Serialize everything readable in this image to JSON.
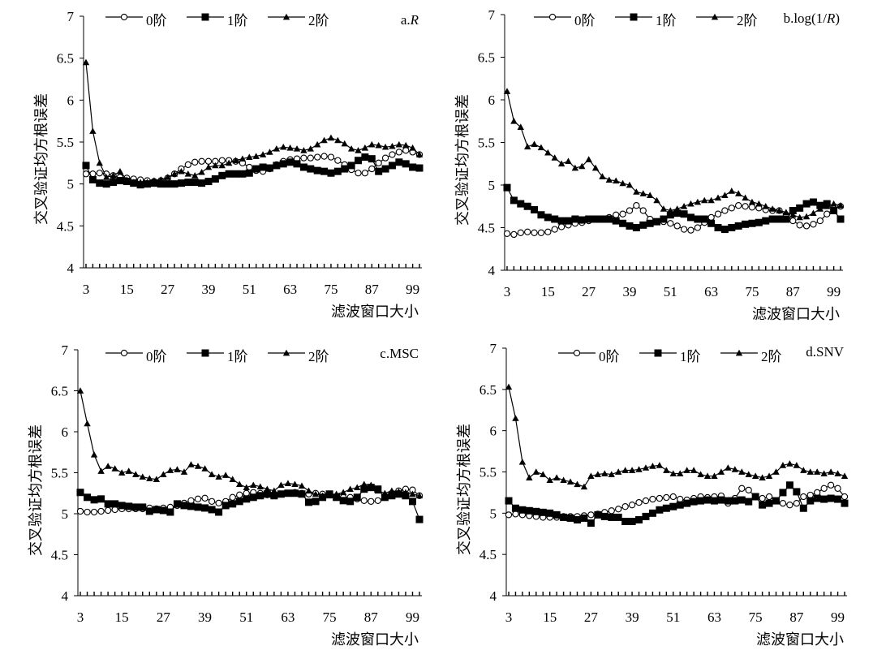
{
  "chart_data": [
    {
      "type": "line",
      "title": "a.R",
      "title_parts": {
        "prefix": "a.",
        "italic": "R",
        "suffix": ""
      },
      "xlabel": "滤波窗口大小",
      "ylabel": "交叉验证均方根误差",
      "ylim": [
        4,
        7
      ],
      "y_ticks": [
        "4",
        "4.5",
        "5",
        "5.5",
        "6",
        "6.5",
        "7"
      ],
      "x_ticks": [
        "3",
        "15",
        "27",
        "39",
        "51",
        "63",
        "75",
        "87",
        "99"
      ],
      "xlim": [
        3,
        101
      ],
      "grid": false,
      "legend_position": "top",
      "x": [
        3,
        5,
        7,
        9,
        11,
        13,
        15,
        17,
        19,
        21,
        23,
        25,
        27,
        29,
        31,
        33,
        35,
        37,
        39,
        41,
        43,
        45,
        47,
        49,
        51,
        53,
        55,
        57,
        59,
        61,
        63,
        65,
        67,
        69,
        71,
        73,
        75,
        77,
        79,
        81,
        83,
        85,
        87,
        89,
        91,
        93,
        95,
        97,
        99,
        101
      ],
      "series": [
        {
          "name": "0阶",
          "marker": "circle",
          "values": [
            5.12,
            5.12,
            5.13,
            5.12,
            5.1,
            5.08,
            5.07,
            5.06,
            5.05,
            5.04,
            5.03,
            5.04,
            5.07,
            5.12,
            5.18,
            5.23,
            5.26,
            5.27,
            5.27,
            5.27,
            5.28,
            5.28,
            5.27,
            5.25,
            5.2,
            5.16,
            5.15,
            5.18,
            5.23,
            5.27,
            5.29,
            5.3,
            5.31,
            5.31,
            5.32,
            5.33,
            5.32,
            5.28,
            5.23,
            5.17,
            5.13,
            5.13,
            5.18,
            5.25,
            5.31,
            5.35,
            5.38,
            5.4,
            5.38,
            5.35
          ]
        },
        {
          "name": "1阶",
          "marker": "square",
          "values": [
            5.22,
            5.05,
            5.01,
            5.0,
            5.02,
            5.04,
            5.03,
            5.01,
            4.99,
            5.0,
            5.01,
            5.0,
            5.0,
            5.0,
            5.01,
            5.02,
            5.02,
            5.01,
            5.03,
            5.06,
            5.1,
            5.12,
            5.12,
            5.12,
            5.13,
            5.18,
            5.2,
            5.19,
            5.22,
            5.24,
            5.26,
            5.24,
            5.2,
            5.18,
            5.16,
            5.15,
            5.13,
            5.15,
            5.18,
            5.22,
            5.28,
            5.32,
            5.3,
            5.15,
            5.18,
            5.22,
            5.26,
            5.24,
            5.2,
            5.19
          ]
        },
        {
          "name": "2阶",
          "marker": "triangle",
          "values": [
            6.45,
            5.63,
            5.25,
            5.08,
            5.1,
            5.15,
            5.05,
            5.02,
            5.02,
            5.02,
            5.04,
            5.05,
            5.08,
            5.12,
            5.15,
            5.12,
            5.1,
            5.14,
            5.2,
            5.22,
            5.22,
            5.25,
            5.28,
            5.3,
            5.32,
            5.33,
            5.35,
            5.38,
            5.42,
            5.44,
            5.43,
            5.42,
            5.4,
            5.42,
            5.47,
            5.52,
            5.55,
            5.52,
            5.48,
            5.42,
            5.4,
            5.43,
            5.47,
            5.46,
            5.44,
            5.45,
            5.47,
            5.46,
            5.43,
            5.35
          ]
        }
      ]
    },
    {
      "type": "line",
      "title": "b.log(1/R)",
      "title_parts": {
        "prefix": "b.log(1/",
        "italic": "R",
        "suffix": ")"
      },
      "xlabel": "滤波窗口大小",
      "ylabel": "交叉验证均方根误差",
      "ylim": [
        4,
        7
      ],
      "y_ticks": [
        "4",
        "4.5",
        "5",
        "5.5",
        "6",
        "6.5",
        "7"
      ],
      "x_ticks": [
        "3",
        "15",
        "27",
        "39",
        "51",
        "63",
        "75",
        "87",
        "99"
      ],
      "xlim": [
        3,
        101
      ],
      "grid": false,
      "legend_position": "top",
      "x": [
        3,
        5,
        7,
        9,
        11,
        13,
        15,
        17,
        19,
        21,
        23,
        25,
        27,
        29,
        31,
        33,
        35,
        37,
        39,
        41,
        43,
        45,
        47,
        49,
        51,
        53,
        55,
        57,
        59,
        61,
        63,
        65,
        67,
        69,
        71,
        73,
        75,
        77,
        79,
        81,
        83,
        85,
        87,
        89,
        91,
        93,
        95,
        97,
        99,
        101
      ],
      "series": [
        {
          "name": "0阶",
          "marker": "circle",
          "values": [
            4.43,
            4.42,
            4.44,
            4.45,
            4.44,
            4.44,
            4.45,
            4.48,
            4.51,
            4.53,
            4.55,
            4.56,
            4.58,
            4.6,
            4.6,
            4.62,
            4.65,
            4.66,
            4.7,
            4.76,
            4.7,
            4.6,
            4.57,
            4.57,
            4.55,
            4.52,
            4.48,
            4.47,
            4.5,
            4.56,
            4.62,
            4.66,
            4.7,
            4.73,
            4.76,
            4.75,
            4.74,
            4.73,
            4.71,
            4.7,
            4.7,
            4.65,
            4.58,
            4.53,
            4.52,
            4.54,
            4.58,
            4.66,
            4.72,
            4.75
          ]
        },
        {
          "name": "1阶",
          "marker": "square",
          "values": [
            4.97,
            4.82,
            4.78,
            4.75,
            4.71,
            4.65,
            4.62,
            4.6,
            4.58,
            4.58,
            4.6,
            4.59,
            4.6,
            4.6,
            4.6,
            4.6,
            4.58,
            4.55,
            4.52,
            4.5,
            4.53,
            4.55,
            4.57,
            4.6,
            4.65,
            4.67,
            4.66,
            4.62,
            4.6,
            4.6,
            4.55,
            4.5,
            4.48,
            4.5,
            4.52,
            4.54,
            4.55,
            4.56,
            4.58,
            4.6,
            4.6,
            4.6,
            4.7,
            4.73,
            4.78,
            4.8,
            4.76,
            4.78,
            4.7,
            4.6
          ]
        },
        {
          "name": "2阶",
          "marker": "triangle",
          "values": [
            6.1,
            5.75,
            5.68,
            5.45,
            5.48,
            5.44,
            5.38,
            5.32,
            5.25,
            5.28,
            5.2,
            5.22,
            5.3,
            5.2,
            5.1,
            5.06,
            5.05,
            5.02,
            5.0,
            4.92,
            4.9,
            4.88,
            4.82,
            4.72,
            4.7,
            4.72,
            4.75,
            4.78,
            4.8,
            4.82,
            4.82,
            4.85,
            4.88,
            4.93,
            4.9,
            4.85,
            4.8,
            4.78,
            4.75,
            4.72,
            4.7,
            4.68,
            4.65,
            4.62,
            4.63,
            4.67,
            4.72,
            4.75,
            4.78,
            4.76
          ]
        }
      ]
    },
    {
      "type": "line",
      "title": "c.MSC",
      "title_parts": {
        "prefix": "c.MSC",
        "italic": "",
        "suffix": ""
      },
      "xlabel": "滤波窗口大小",
      "ylabel": "交叉验证均方根误差",
      "ylim": [
        4,
        7
      ],
      "y_ticks": [
        "4",
        "4.5",
        "5",
        "5.5",
        "6",
        "6.5",
        "7"
      ],
      "x_ticks": [
        "3",
        "15",
        "27",
        "39",
        "51",
        "63",
        "75",
        "87",
        "99"
      ],
      "xlim": [
        3,
        101
      ],
      "grid": false,
      "legend_position": "top",
      "x": [
        3,
        5,
        7,
        9,
        11,
        13,
        15,
        17,
        19,
        21,
        23,
        25,
        27,
        29,
        31,
        33,
        35,
        37,
        39,
        41,
        43,
        45,
        47,
        49,
        51,
        53,
        55,
        57,
        59,
        61,
        63,
        65,
        67,
        69,
        71,
        73,
        75,
        77,
        79,
        81,
        83,
        85,
        87,
        89,
        91,
        93,
        95,
        97,
        99,
        101
      ],
      "series": [
        {
          "name": "0阶",
          "marker": "circle",
          "values": [
            5.03,
            5.02,
            5.02,
            5.03,
            5.04,
            5.05,
            5.06,
            5.06,
            5.06,
            5.06,
            5.07,
            5.06,
            5.07,
            5.08,
            5.1,
            5.13,
            5.16,
            5.18,
            5.19,
            5.15,
            5.13,
            5.15,
            5.2,
            5.23,
            5.25,
            5.26,
            5.25,
            5.23,
            5.22,
            5.24,
            5.25,
            5.26,
            5.25,
            5.24,
            5.25,
            5.24,
            5.23,
            5.21,
            5.2,
            5.2,
            5.18,
            5.16,
            5.15,
            5.16,
            5.2,
            5.25,
            5.28,
            5.3,
            5.29,
            5.22
          ]
        },
        {
          "name": "1阶",
          "marker": "square",
          "values": [
            5.26,
            5.2,
            5.17,
            5.18,
            5.12,
            5.12,
            5.1,
            5.09,
            5.08,
            5.08,
            5.03,
            5.05,
            5.04,
            5.02,
            5.12,
            5.1,
            5.09,
            5.08,
            5.07,
            5.05,
            5.02,
            5.1,
            5.12,
            5.15,
            5.18,
            5.2,
            5.22,
            5.24,
            5.22,
            5.24,
            5.25,
            5.25,
            5.24,
            5.14,
            5.15,
            5.2,
            5.24,
            5.2,
            5.16,
            5.15,
            5.2,
            5.3,
            5.32,
            5.3,
            5.2,
            5.22,
            5.24,
            5.22,
            5.15,
            4.93
          ]
        },
        {
          "name": "2阶",
          "marker": "triangle",
          "values": [
            6.5,
            6.1,
            5.72,
            5.52,
            5.58,
            5.55,
            5.5,
            5.52,
            5.48,
            5.45,
            5.43,
            5.42,
            5.48,
            5.53,
            5.54,
            5.51,
            5.6,
            5.58,
            5.55,
            5.48,
            5.45,
            5.47,
            5.42,
            5.36,
            5.32,
            5.35,
            5.33,
            5.3,
            5.28,
            5.35,
            5.37,
            5.36,
            5.34,
            5.28,
            5.24,
            5.22,
            5.22,
            5.24,
            5.26,
            5.3,
            5.32,
            5.36,
            5.35,
            5.28,
            5.25,
            5.28,
            5.27,
            5.26,
            5.24,
            5.22
          ]
        }
      ]
    },
    {
      "type": "line",
      "title": "d.SNV",
      "title_parts": {
        "prefix": "d.SNV",
        "italic": "",
        "suffix": ""
      },
      "xlabel": "滤波窗口大小",
      "ylabel": "交叉验证均方根误差",
      "ylim": [
        4,
        7
      ],
      "y_ticks": [
        "4",
        "4.5",
        "5",
        "5.5",
        "6",
        "6.5",
        "7"
      ],
      "x_ticks": [
        "3",
        "15",
        "27",
        "39",
        "51",
        "63",
        "75",
        "87",
        "99"
      ],
      "xlim": [
        3,
        101
      ],
      "grid": false,
      "legend_position": "top",
      "x": [
        3,
        5,
        7,
        9,
        11,
        13,
        15,
        17,
        19,
        21,
        23,
        25,
        27,
        29,
        31,
        33,
        35,
        37,
        39,
        41,
        43,
        45,
        47,
        49,
        51,
        53,
        55,
        57,
        59,
        61,
        63,
        65,
        67,
        69,
        71,
        73,
        75,
        77,
        79,
        81,
        83,
        85,
        87,
        89,
        91,
        93,
        95,
        97,
        99,
        101
      ],
      "series": [
        {
          "name": "0阶",
          "marker": "circle",
          "values": [
            4.98,
            4.99,
            4.98,
            4.97,
            4.96,
            4.95,
            4.95,
            4.95,
            4.96,
            4.96,
            4.96,
            4.97,
            4.98,
            4.99,
            5.01,
            5.03,
            5.05,
            5.08,
            5.1,
            5.13,
            5.15,
            5.17,
            5.18,
            5.19,
            5.2,
            5.17,
            5.16,
            5.18,
            5.2,
            5.19,
            5.2,
            5.21,
            5.12,
            5.18,
            5.3,
            5.28,
            5.2,
            5.18,
            5.2,
            5.15,
            5.12,
            5.1,
            5.12,
            5.2,
            5.22,
            5.25,
            5.3,
            5.34,
            5.3,
            5.2
          ]
        },
        {
          "name": "1阶",
          "marker": "square",
          "values": [
            5.15,
            5.06,
            5.04,
            5.03,
            5.02,
            5.01,
            5.0,
            4.98,
            4.95,
            4.94,
            4.92,
            4.94,
            4.88,
            4.98,
            4.96,
            4.95,
            4.95,
            4.9,
            4.9,
            4.92,
            4.96,
            5.0,
            5.04,
            5.06,
            5.08,
            5.1,
            5.12,
            5.14,
            5.15,
            5.16,
            5.15,
            5.16,
            5.15,
            5.15,
            5.16,
            5.14,
            5.2,
            5.1,
            5.12,
            5.15,
            5.25,
            5.34,
            5.26,
            5.06,
            5.15,
            5.18,
            5.17,
            5.18,
            5.17,
            5.12
          ]
        },
        {
          "name": "2阶",
          "marker": "triangle",
          "values": [
            6.53,
            6.15,
            5.62,
            5.43,
            5.5,
            5.47,
            5.4,
            5.43,
            5.4,
            5.38,
            5.35,
            5.32,
            5.45,
            5.47,
            5.48,
            5.47,
            5.5,
            5.52,
            5.52,
            5.53,
            5.55,
            5.57,
            5.58,
            5.52,
            5.48,
            5.48,
            5.52,
            5.52,
            5.47,
            5.45,
            5.45,
            5.5,
            5.55,
            5.53,
            5.5,
            5.47,
            5.45,
            5.43,
            5.45,
            5.5,
            5.58,
            5.6,
            5.58,
            5.52,
            5.5,
            5.5,
            5.48,
            5.5,
            5.48,
            5.45
          ]
        }
      ]
    }
  ]
}
